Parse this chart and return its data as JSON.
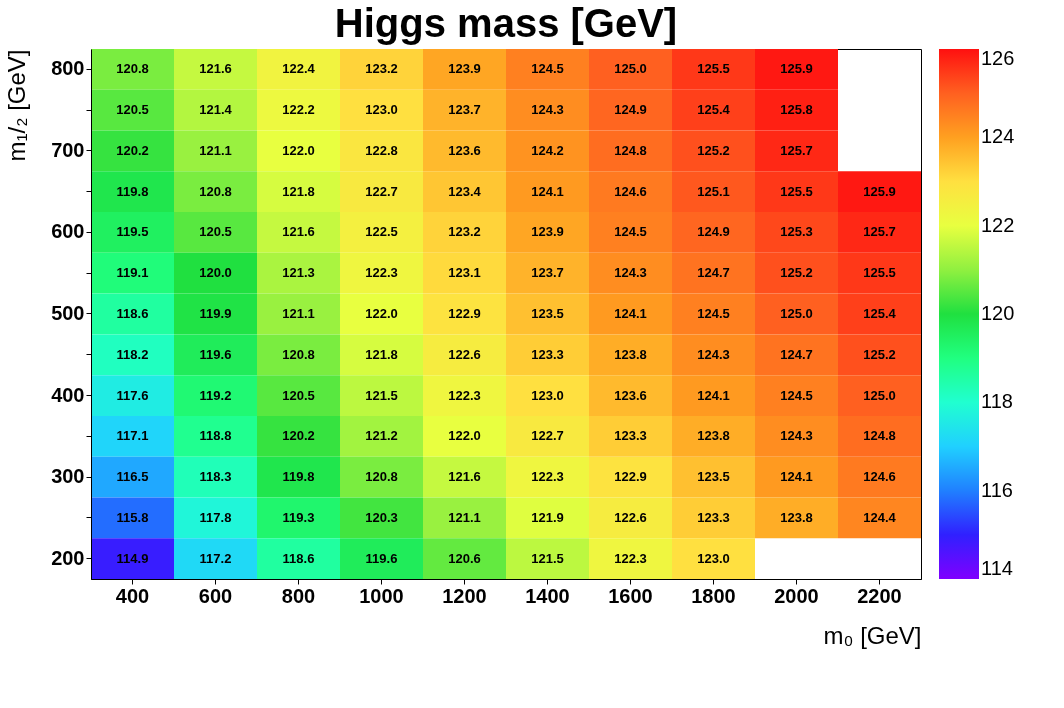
{
  "chart_data": {
    "type": "heatmap",
    "title": "Higgs mass [GeV]",
    "xlabel": "m₀ [GeV]",
    "ylabel": "m₁/₂ [GeV]",
    "categories": [
      "400",
      "600",
      "800",
      "1000",
      "1200",
      "1400",
      "1600",
      "1800",
      "2000",
      "2200"
    ],
    "y_categories": [
      "800",
      null,
      "700",
      null,
      "600",
      null,
      "500",
      null,
      "400",
      null,
      "300",
      null,
      "200"
    ],
    "cells": [
      [
        120.8,
        121.6,
        122.4,
        123.2,
        123.9,
        124.5,
        125.0,
        125.5,
        125.9,
        null
      ],
      [
        120.5,
        121.4,
        122.2,
        123.0,
        123.7,
        124.3,
        124.9,
        125.4,
        125.8,
        null
      ],
      [
        120.2,
        121.1,
        122.0,
        122.8,
        123.6,
        124.2,
        124.8,
        125.2,
        125.7,
        null
      ],
      [
        119.8,
        120.8,
        121.8,
        122.7,
        123.4,
        124.1,
        124.6,
        125.1,
        125.5,
        125.9
      ],
      [
        119.5,
        120.5,
        121.6,
        122.5,
        123.2,
        123.9,
        124.5,
        124.9,
        125.3,
        125.7
      ],
      [
        119.1,
        120.0,
        121.3,
        122.3,
        123.1,
        123.7,
        124.3,
        124.7,
        125.2,
        125.5
      ],
      [
        118.6,
        119.9,
        121.1,
        122.0,
        122.9,
        123.5,
        124.1,
        124.5,
        125.0,
        125.4
      ],
      [
        118.2,
        119.6,
        120.8,
        121.8,
        122.6,
        123.3,
        123.8,
        124.3,
        124.7,
        125.2
      ],
      [
        117.6,
        119.2,
        120.5,
        121.5,
        122.3,
        123.0,
        123.6,
        124.1,
        124.5,
        125.0
      ],
      [
        117.1,
        118.8,
        120.2,
        121.2,
        122.0,
        122.7,
        123.3,
        123.8,
        124.3,
        124.8
      ],
      [
        116.5,
        118.3,
        119.8,
        120.8,
        121.6,
        122.3,
        122.9,
        123.5,
        124.1,
        124.6
      ],
      [
        115.8,
        117.8,
        119.3,
        120.3,
        121.1,
        121.9,
        122.6,
        123.3,
        123.8,
        124.4
      ],
      [
        114.9,
        117.2,
        118.6,
        119.6,
        120.6,
        121.5,
        122.3,
        123.0,
        null,
        null
      ]
    ],
    "cell_labels": [
      [
        "120.8",
        "121.6",
        "122.4",
        "123.2",
        "123.9",
        "124.5",
        "125.0",
        "125.5",
        "125.9",
        null
      ],
      [
        "120.5",
        "121.4",
        "122.2",
        "123.0",
        "123.7",
        "124.3",
        "124.9",
        "125.4",
        "125.8",
        null
      ],
      [
        "120.2",
        "121.1",
        "122.0",
        "122.8",
        "123.6",
        "124.2",
        "124.8",
        "125.2",
        "125.7",
        null
      ],
      [
        "119.8",
        "120.8",
        "121.8",
        "122.7",
        "123.4",
        "124.1",
        "124.6",
        "125.1",
        "125.5",
        "125.9"
      ],
      [
        "119.5",
        "120.5",
        "121.6",
        "122.5",
        "123.2",
        "123.9",
        "124.5",
        "124.9",
        "125.3",
        "125.7"
      ],
      [
        "119.1",
        "120.0",
        "121.3",
        "122.3",
        "123.1",
        "123.7",
        "124.3",
        "124.7",
        "125.2",
        "125.5"
      ],
      [
        "118.6",
        "119.9",
        "121.1",
        "122.0",
        "122.9",
        "123.5",
        "124.1",
        "124.5",
        "125.0",
        "125.4"
      ],
      [
        "118.2",
        "119.6",
        "120.8",
        "121.8",
        "122.6",
        "123.3",
        "123.8",
        "124.3",
        "124.7",
        "125.2"
      ],
      [
        "117.6",
        "119.2",
        "120.5",
        "121.5",
        "122.3",
        "123.0",
        "123.6",
        "124.1",
        "124.5",
        "125.0"
      ],
      [
        "117.1",
        "118.8",
        "120.2",
        "121.2",
        "122.0",
        "122.7",
        "123.3",
        "123.8",
        "124.3",
        "124.8"
      ],
      [
        "116.5",
        "118.3",
        "119.8",
        "120.8",
        "121.6",
        "122.3",
        "122.9",
        "123.5",
        "124.1",
        "124.6"
      ],
      [
        "115.8",
        "117.8",
        "119.3",
        "120.3",
        "121.1",
        "121.9",
        "122.6",
        "123.3",
        "123.8",
        "124.4"
      ],
      [
        "114.9",
        "117.2",
        "118.6",
        "119.6",
        "120.6",
        "121.5",
        "122.3",
        "123.0",
        null,
        null
      ]
    ],
    "clim": [
      114,
      126
    ],
    "cticks": [
      114,
      116,
      118,
      120,
      122,
      124,
      126
    ],
    "data_labels": true
  }
}
